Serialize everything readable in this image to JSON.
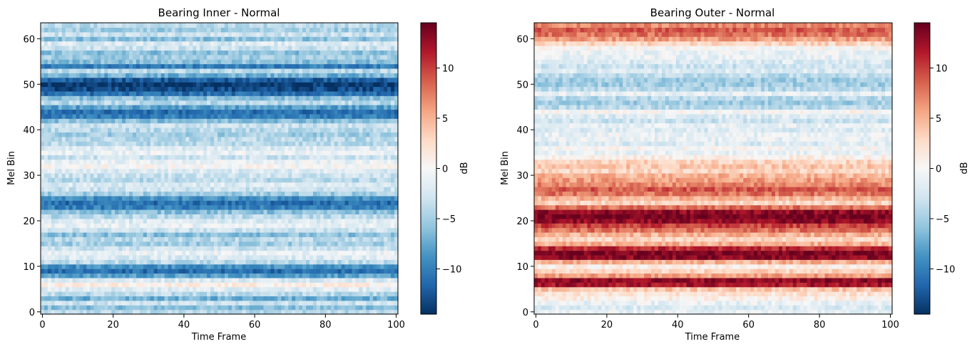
{
  "chart_data": [
    {
      "type": "heatmap",
      "title": "Bearing Inner - Normal",
      "xlabel": "Time Frame",
      "ylabel": "Mel Bin",
      "xlim": [
        0,
        100
      ],
      "ylim": [
        0,
        63
      ],
      "x_ticks": [
        0,
        20,
        40,
        60,
        80,
        100
      ],
      "y_ticks": [
        0,
        10,
        20,
        30,
        40,
        50,
        60
      ],
      "colormap": "RdBu_r",
      "colorbar": {
        "label": "dB",
        "vmin": -14.5,
        "vmax": 14.5,
        "ticks": [
          -10,
          -5,
          0,
          5,
          10
        ],
        "tick_labels": [
          "−10",
          "−5",
          "0",
          "5",
          "10"
        ]
      },
      "band_profile_db": [
        -4,
        -6,
        -3,
        -7,
        -4,
        -2,
        1,
        -2,
        -8,
        -11,
        -9,
        -4,
        -2,
        -1,
        -3,
        -5,
        -4,
        -6,
        -3,
        -1,
        -2,
        -4,
        -6,
        -10,
        -11,
        -9,
        -5,
        -3,
        -2,
        -4,
        -3,
        -2,
        0,
        -1,
        -3,
        -1,
        -2,
        -4,
        -4,
        -5,
        -4,
        -3,
        -6,
        -10,
        -11,
        -8,
        -4,
        -6,
        -11,
        -13,
        -14,
        -12,
        -7,
        -4,
        -10,
        -6,
        -5,
        -6,
        -3,
        -2,
        -6,
        -3,
        -5,
        -4
      ],
      "colors": {
        "vmin": "#053061",
        "mid": "#f7f7f7",
        "vmax": "#67001f"
      }
    },
    {
      "type": "heatmap",
      "title": "Bearing Outer - Normal",
      "xlabel": "Time Frame",
      "ylabel": "Mel Bin",
      "xlim": [
        0,
        100
      ],
      "ylim": [
        0,
        63
      ],
      "x_ticks": [
        0,
        20,
        40,
        60,
        80,
        100
      ],
      "y_ticks": [
        0,
        10,
        20,
        30,
        40,
        50,
        60
      ],
      "colormap": "RdBu_r",
      "colorbar": {
        "label": "dB",
        "vmin": -14.5,
        "vmax": 14.5,
        "ticks": [
          -10,
          -5,
          0,
          5,
          10
        ],
        "tick_labels": [
          "−10",
          "−5",
          "0",
          "5",
          "10"
        ]
      },
      "band_profile_db": [
        -1,
        -2,
        -1,
        1,
        2,
        4,
        12,
        13,
        6,
        3,
        1,
        5,
        13,
        14,
        11,
        5,
        3,
        5,
        8,
        10,
        13,
        14,
        13,
        8,
        3,
        5,
        8,
        9,
        7,
        6,
        5,
        3,
        4,
        3,
        1,
        -1,
        0,
        -2,
        -1,
        -1,
        -2,
        -1,
        -3,
        -2,
        0,
        -4,
        -5,
        -4,
        -1,
        -4,
        -5,
        -5,
        -4,
        -2,
        -3,
        -2,
        -1,
        -1,
        0,
        3,
        6,
        8,
        9,
        7
      ],
      "colors": {
        "vmin": "#053061",
        "mid": "#f7f7f7",
        "vmax": "#67001f"
      }
    }
  ]
}
